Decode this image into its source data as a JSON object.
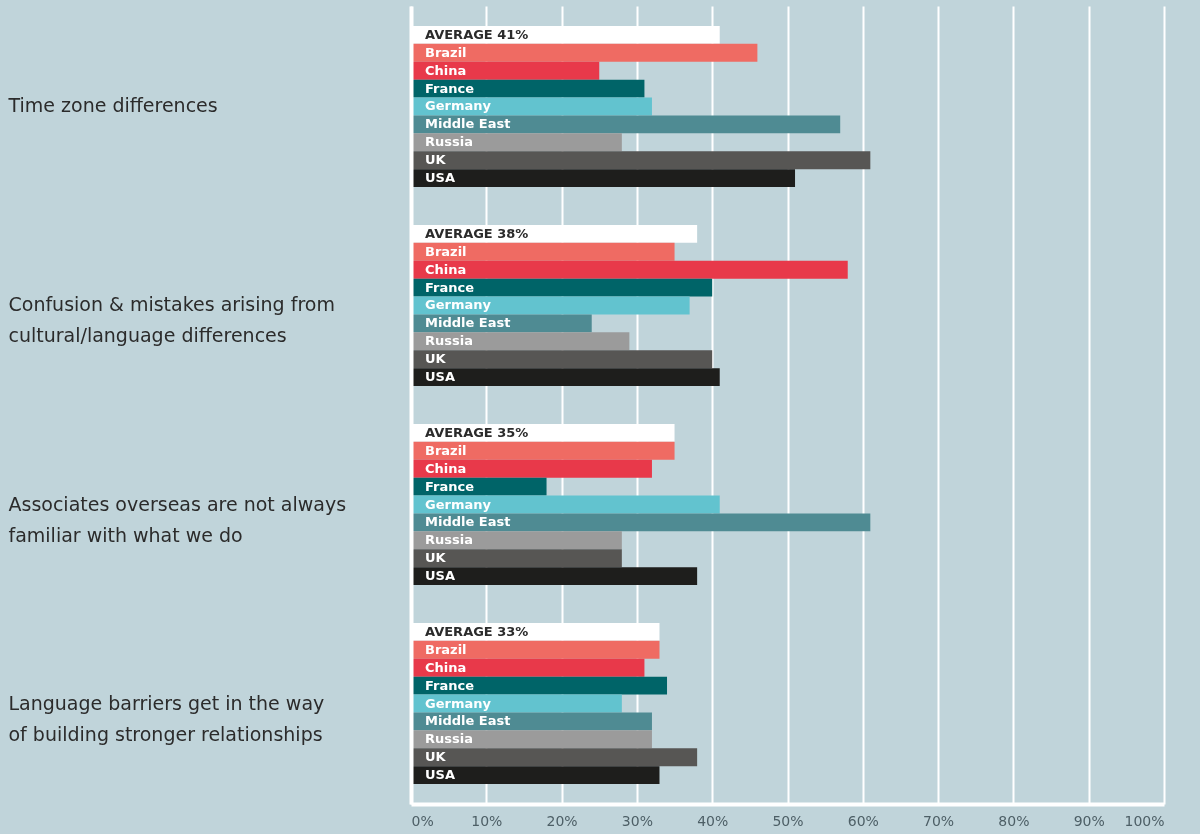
{
  "chart_data": {
    "type": "bar",
    "orientation": "horizontal",
    "categories": [
      "Time zone differences",
      "Confusion & mistakes arising from cultural/language differences",
      "Associates overseas are not always familiar with what we do",
      "Language barriers get in the way of building stronger relationships"
    ],
    "series": [
      {
        "name": "AVERAGE",
        "color": "#ffffff",
        "values": [
          41,
          38,
          35,
          33
        ],
        "value_labels": [
          "41%",
          "38%",
          "35%",
          "33%"
        ]
      },
      {
        "name": "Brazil",
        "color": "#ef6b63",
        "values": [
          46,
          35,
          35,
          33
        ]
      },
      {
        "name": "China",
        "color": "#e8394a",
        "values": [
          25,
          58,
          32,
          31
        ]
      },
      {
        "name": "France",
        "color": "#006468",
        "values": [
          31,
          40,
          18,
          34
        ]
      },
      {
        "name": "Germany",
        "color": "#62c3cf",
        "values": [
          32,
          37,
          41,
          28
        ]
      },
      {
        "name": "Middle East",
        "color": "#4f8b93",
        "values": [
          57,
          24,
          61,
          32
        ]
      },
      {
        "name": "Russia",
        "color": "#9b9b9b",
        "values": [
          28,
          29,
          28,
          32
        ]
      },
      {
        "name": "UK",
        "color": "#575654",
        "values": [
          61,
          40,
          28,
          38
        ]
      },
      {
        "name": "USA",
        "color": "#1e1e1c",
        "values": [
          51,
          41,
          38,
          33
        ]
      }
    ],
    "xlim": [
      0,
      100
    ],
    "xticks": [
      {
        "value": 0,
        "label": "0%"
      },
      {
        "value": 10,
        "label": "10%"
      },
      {
        "value": 20,
        "label": "20%"
      },
      {
        "value": 30,
        "label": "30%"
      },
      {
        "value": 40,
        "label": "40%"
      },
      {
        "value": 50,
        "label": "50%"
      },
      {
        "value": 60,
        "label": "60%"
      },
      {
        "value": 70,
        "label": "70%"
      },
      {
        "value": 80,
        "label": "80%"
      },
      {
        "value": 90,
        "label": "90%"
      },
      {
        "value": 100,
        "label": "100%"
      }
    ],
    "grid": "x"
  }
}
